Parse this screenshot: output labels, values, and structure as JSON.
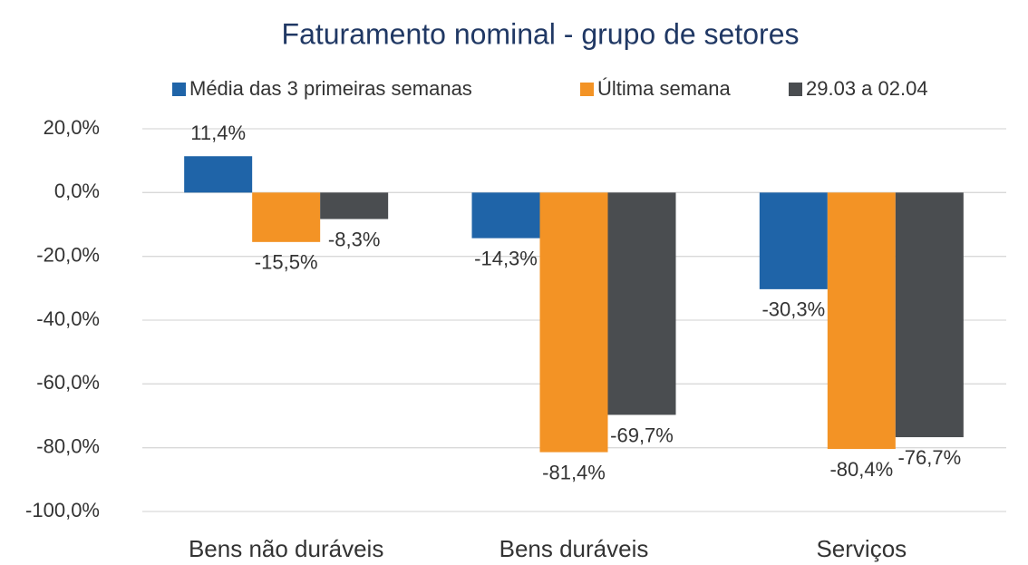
{
  "chart_data": {
    "type": "bar",
    "title": "Faturamento nominal - grupo de setores",
    "categories": [
      "Bens não duráveis",
      "Bens duráveis",
      "Serviços"
    ],
    "series": [
      {
        "name": "Média das 3 primeiras semanas",
        "color": "#1f64a8",
        "values": [
          11.4,
          -14.3,
          -30.3
        ],
        "value_labels": [
          "11,4%",
          "-14,3%",
          "-30,3%"
        ]
      },
      {
        "name": "Última semana",
        "color": "#f39325",
        "values": [
          -15.5,
          -81.4,
          -80.4
        ],
        "value_labels": [
          "-15,5%",
          "-81,4%",
          "-80,4%"
        ]
      },
      {
        "name": "29.03 a 02.04",
        "color": "#4a4d50",
        "values": [
          -8.3,
          -69.7,
          -76.7
        ],
        "value_labels": [
          "-8,3%",
          "-69,7%",
          "-76,7%"
        ]
      }
    ],
    "ylim": [
      -100,
      20
    ],
    "yticks": [
      {
        "value": 20,
        "label": "20,0%"
      },
      {
        "value": 0,
        "label": "0,0%"
      },
      {
        "value": -20,
        "label": "-20,0%"
      },
      {
        "value": -40,
        "label": "-40,0%"
      },
      {
        "value": -60,
        "label": "-60,0%"
      },
      {
        "value": -80,
        "label": "-80,0%"
      },
      {
        "value": -100,
        "label": "-100,0%"
      }
    ],
    "grid": true,
    "legend": "top"
  }
}
